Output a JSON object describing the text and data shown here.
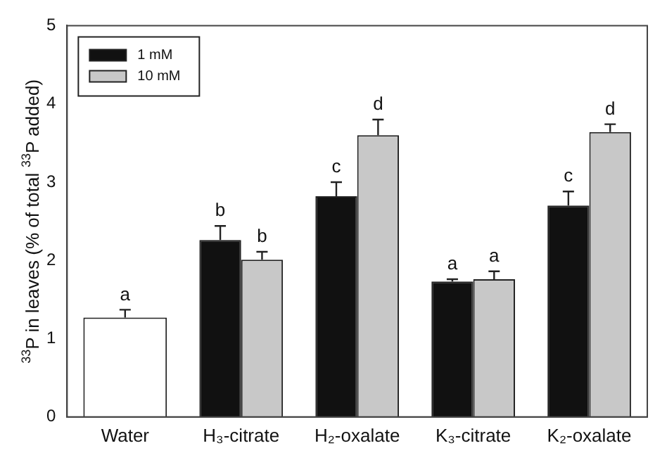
{
  "chart_data": {
    "type": "bar",
    "ylabel": "$^{33}$P in leaves (% of total $^{33}$P added)",
    "categories": [
      "Water",
      "H₃-citrate",
      "H₂-oxalate",
      "K₃-citrate",
      "K₂-oxalate"
    ],
    "series": [
      {
        "color": "#ffffff",
        "values": [
          1.27,
          null,
          null,
          null,
          null
        ],
        "errors": [
          [
            1.27,
            1.37
          ],
          null,
          null,
          null,
          null
        ]
      },
      {
        "name": "1 mM",
        "color": "#111111",
        "values": [
          null,
          2.26,
          2.82,
          1.73,
          2.7
        ],
        "errors": [
          null,
          [
            2.26,
            2.44
          ],
          [
            2.82,
            3.0
          ],
          [
            1.73,
            1.76
          ],
          [
            2.7,
            2.88
          ]
        ]
      },
      {
        "name": "10 mM",
        "color": "#c8c8c8",
        "values": [
          null,
          2.01,
          3.6,
          1.76,
          3.64
        ],
        "errors": [
          null,
          [
            2.01,
            2.11
          ],
          [
            3.6,
            3.8
          ],
          [
            1.76,
            1.86
          ],
          [
            3.64,
            3.74
          ]
        ]
      }
    ],
    "annotations": [
      {
        "text": "a",
        "x": "Water",
        "y": 1.27
      },
      {
        "text": "b",
        "x": "H₃-citrate",
        "y": 2.26
      },
      {
        "text": "b",
        "x": "H₃-citrate",
        "y": 2.01
      },
      {
        "text": "c",
        "x": "H₂-oxalate",
        "y": 2.82
      },
      {
        "text": "d",
        "x": "H₂-oxalate",
        "y": 3.6
      },
      {
        "text": "a",
        "x": "K₃-citrate",
        "y": 1.73
      },
      {
        "text": "a",
        "x": "K₃-citrate",
        "y": 1.76
      },
      {
        "text": "c",
        "x": "K₂-oxalate",
        "y": 2.7
      },
      {
        "text": "d",
        "x": "K₂-oxalate",
        "y": 3.64
      }
    ],
    "ylim": [
      0,
      5
    ],
    "yticks": [
      0,
      1,
      2,
      3,
      4,
      5
    ],
    "grid": false,
    "legend": "top left"
  }
}
